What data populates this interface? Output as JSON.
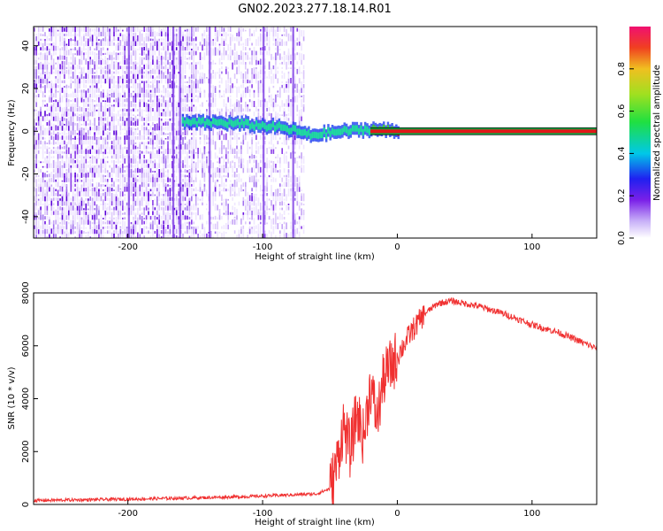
{
  "chart_data": [
    {
      "type": "heatmap",
      "title": "GN02.2023.277.18.14.R01",
      "xlabel": "Height of straight line (km)",
      "ylabel": "Frequency (Hz)",
      "xlim": [
        -270,
        148
      ],
      "ylim": [
        -50,
        49
      ],
      "xticks": [
        -200,
        -100,
        0,
        100
      ],
      "yticks": [
        -40,
        -20,
        0,
        20,
        40
      ],
      "colorbar": {
        "label": "Normalized spectral amplitude",
        "range": [
          0,
          1
        ],
        "ticks": [
          "0.0",
          "0.2",
          "0.4",
          "0.6",
          "0.8"
        ]
      },
      "ridge": {
        "description_points": [
          {
            "x": -160,
            "y": 4
          },
          {
            "x": -130,
            "y": 4
          },
          {
            "x": -110,
            "y": 3
          },
          {
            "x": -90,
            "y": 2
          },
          {
            "x": -75,
            "y": 0
          },
          {
            "x": -65,
            "y": -2
          },
          {
            "x": -55,
            "y": -1
          },
          {
            "x": -40,
            "y": 0
          },
          {
            "x": -20,
            "y": 1
          },
          {
            "x": 0,
            "y": 0
          },
          {
            "x": 148,
            "y": 0
          }
        ],
        "noise_region_end_x": -70
      }
    },
    {
      "type": "line",
      "xlabel": "Height of straight line (km)",
      "ylabel": "SNR (10 * v/v)",
      "xlim": [
        -270,
        148
      ],
      "ylim": [
        0,
        8000
      ],
      "xticks": [
        -200,
        -100,
        0,
        100
      ],
      "yticks": [
        0,
        2000,
        4000,
        6000,
        8000
      ],
      "color": "#f03030",
      "x": [
        -270,
        -200,
        -150,
        -110,
        -100,
        -60,
        -50,
        -45,
        -40,
        -35,
        -30,
        -25,
        -20,
        -15,
        -10,
        -5,
        0,
        10,
        20,
        30,
        40,
        60,
        80,
        100,
        120,
        148
      ],
      "y": [
        150,
        200,
        250,
        300,
        320,
        400,
        600,
        1500,
        3000,
        2000,
        3500,
        2500,
        4500,
        3200,
        4800,
        5200,
        5600,
        6500,
        7200,
        7600,
        7700,
        7500,
        7200,
        6800,
        6500,
        5900
      ]
    }
  ]
}
